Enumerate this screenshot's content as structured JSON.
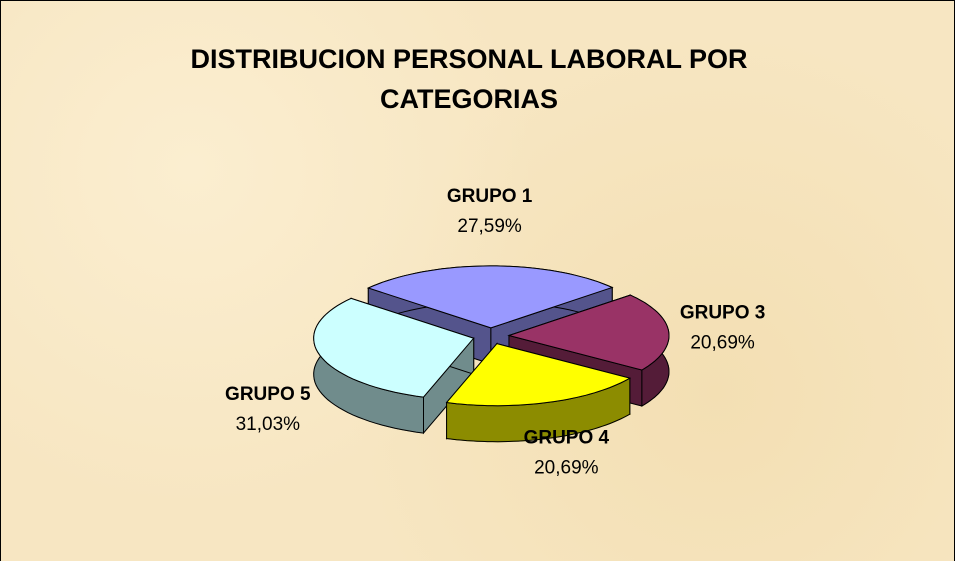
{
  "chart_data": {
    "type": "pie3d",
    "title": "DISTRIBUCION PERSONAL LABORAL POR CATEGORIAS",
    "categories": [
      "GRUPO 1",
      "GRUPO 3",
      "GRUPO 4",
      "GRUPO 5"
    ],
    "values": [
      27.59,
      20.69,
      20.69,
      31.03
    ],
    "value_labels": [
      "27,59%",
      "20,69%",
      "20,69%",
      "31,03%"
    ],
    "colors": [
      "#9999ff",
      "#993366",
      "#ffff00",
      "#ccffff"
    ]
  }
}
